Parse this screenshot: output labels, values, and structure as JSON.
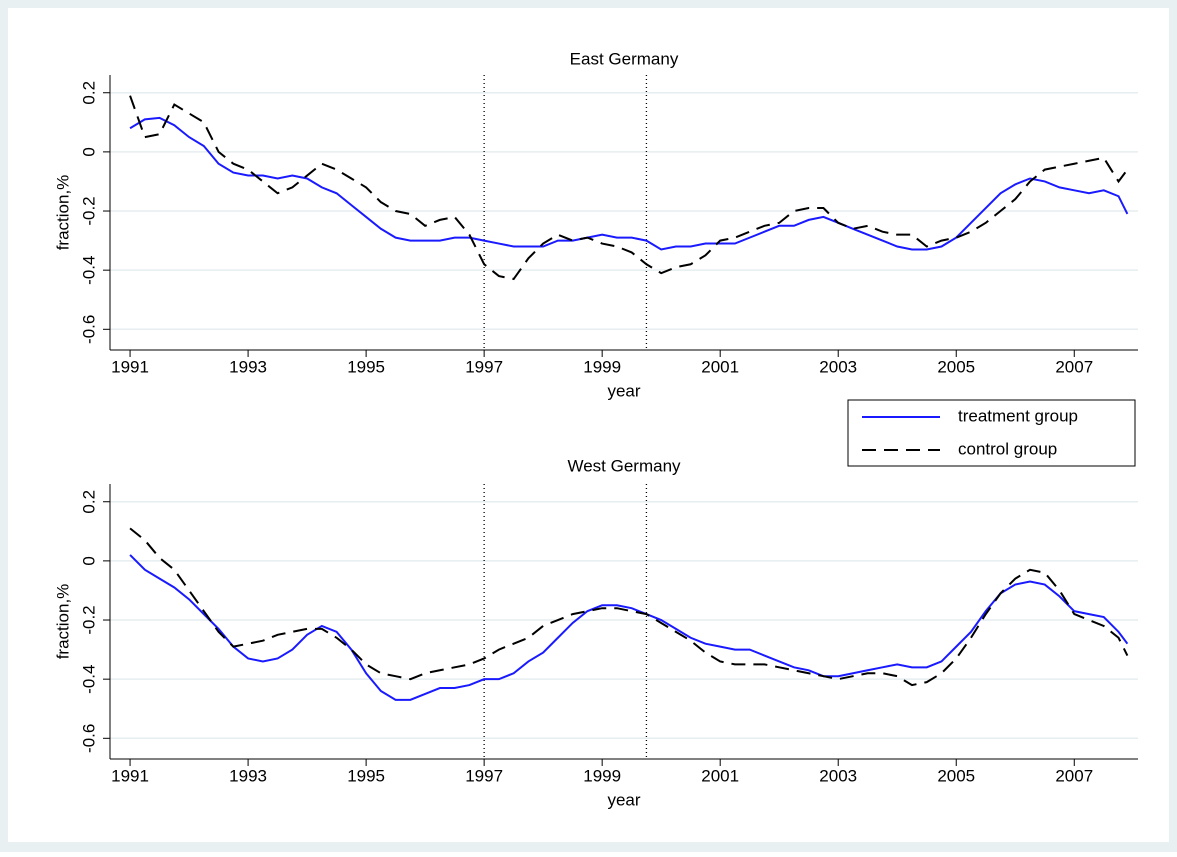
{
  "chart_data": [
    {
      "type": "line",
      "title": "East Germany",
      "x_label": "year",
      "y_label": "fraction,%",
      "xlim": [
        1990.66,
        2008.08
      ],
      "xticks": [
        1991,
        1993,
        1995,
        1997,
        1999,
        2001,
        2003,
        2005,
        2007
      ],
      "ylim": [
        -0.67,
        0.26
      ],
      "yticks": [
        0.2,
        0,
        -0.2,
        -0.4,
        -0.6
      ],
      "grid": true,
      "xlines": [
        1997,
        1999.75
      ],
      "x": [
        1991,
        1991.25,
        1991.5,
        1991.75,
        1992,
        1992.25,
        1992.5,
        1992.75,
        1993,
        1993.25,
        1993.5,
        1993.75,
        1994,
        1994.25,
        1994.5,
        1994.75,
        1995,
        1995.25,
        1995.5,
        1995.75,
        1996,
        1996.25,
        1996.5,
        1996.75,
        1997,
        1997.25,
        1997.5,
        1997.75,
        1998,
        1998.25,
        1998.5,
        1998.75,
        1999,
        1999.25,
        1999.5,
        1999.75,
        2000,
        2000.25,
        2000.5,
        2000.75,
        2001,
        2001.25,
        2001.5,
        2001.75,
        2002,
        2002.25,
        2002.5,
        2002.75,
        2003,
        2003.25,
        2003.5,
        2003.75,
        2004,
        2004.25,
        2004.5,
        2004.75,
        2005,
        2005.25,
        2005.5,
        2005.75,
        2006,
        2006.25,
        2006.5,
        2006.75,
        2007,
        2007.25,
        2007.5,
        2007.75,
        2007.9
      ],
      "series": [
        {
          "name": "treatment group",
          "color": "#1a1aff",
          "dash": "none",
          "values": [
            0.08,
            0.11,
            0.115,
            0.09,
            0.05,
            0.02,
            -0.04,
            -0.07,
            -0.08,
            -0.08,
            -0.09,
            -0.08,
            -0.09,
            -0.12,
            -0.14,
            -0.18,
            -0.22,
            -0.26,
            -0.29,
            -0.3,
            -0.3,
            -0.3,
            -0.29,
            -0.29,
            -0.3,
            -0.31,
            -0.32,
            -0.32,
            -0.32,
            -0.3,
            -0.3,
            -0.29,
            -0.28,
            -0.29,
            -0.29,
            -0.3,
            -0.33,
            -0.32,
            -0.32,
            -0.31,
            -0.31,
            -0.31,
            -0.29,
            -0.27,
            -0.25,
            -0.25,
            -0.23,
            -0.22,
            -0.24,
            -0.26,
            -0.28,
            -0.3,
            -0.32,
            -0.33,
            -0.33,
            -0.32,
            -0.29,
            -0.24,
            -0.19,
            -0.14,
            -0.11,
            -0.09,
            -0.1,
            -0.12,
            -0.13,
            -0.14,
            -0.13,
            -0.15,
            -0.21
          ]
        },
        {
          "name": "control group",
          "color": "#000000",
          "dash": "14 8",
          "values": [
            0.19,
            0.05,
            0.06,
            0.16,
            0.13,
            0.1,
            0.0,
            -0.04,
            -0.06,
            -0.1,
            -0.14,
            -0.12,
            -0.08,
            -0.04,
            -0.06,
            -0.09,
            -0.12,
            -0.17,
            -0.2,
            -0.21,
            -0.25,
            -0.23,
            -0.22,
            -0.28,
            -0.38,
            -0.42,
            -0.43,
            -0.36,
            -0.31,
            -0.28,
            -0.3,
            -0.29,
            -0.31,
            -0.32,
            -0.34,
            -0.38,
            -0.41,
            -0.39,
            -0.38,
            -0.35,
            -0.3,
            -0.29,
            -0.27,
            -0.25,
            -0.24,
            -0.2,
            -0.19,
            -0.19,
            -0.24,
            -0.26,
            -0.25,
            -0.27,
            -0.28,
            -0.28,
            -0.32,
            -0.3,
            -0.29,
            -0.27,
            -0.24,
            -0.2,
            -0.16,
            -0.1,
            -0.06,
            -0.05,
            -0.04,
            -0.03,
            -0.02,
            -0.1,
            -0.06
          ]
        }
      ]
    },
    {
      "type": "line",
      "title": "West Germany",
      "x_label": "year",
      "y_label": "fraction,%",
      "xlim": [
        1990.66,
        2008.08
      ],
      "xticks": [
        1991,
        1993,
        1995,
        1997,
        1999,
        2001,
        2003,
        2005,
        2007
      ],
      "ylim": [
        -0.67,
        0.26
      ],
      "yticks": [
        0.2,
        0,
        -0.2,
        -0.4,
        -0.6
      ],
      "grid": true,
      "xlines": [
        1997,
        1999.75
      ],
      "x": [
        1991,
        1991.25,
        1991.5,
        1991.75,
        1992,
        1992.25,
        1992.5,
        1992.75,
        1993,
        1993.25,
        1993.5,
        1993.75,
        1994,
        1994.25,
        1994.5,
        1994.75,
        1995,
        1995.25,
        1995.5,
        1995.75,
        1996,
        1996.25,
        1996.5,
        1996.75,
        1997,
        1997.25,
        1997.5,
        1997.75,
        1998,
        1998.25,
        1998.5,
        1998.75,
        1999,
        1999.25,
        1999.5,
        1999.75,
        2000,
        2000.25,
        2000.5,
        2000.75,
        2001,
        2001.25,
        2001.5,
        2001.75,
        2002,
        2002.25,
        2002.5,
        2002.75,
        2003,
        2003.25,
        2003.5,
        2003.75,
        2004,
        2004.25,
        2004.5,
        2004.75,
        2005,
        2005.25,
        2005.5,
        2005.75,
        2006,
        2006.25,
        2006.5,
        2006.75,
        2007,
        2007.25,
        2007.5,
        2007.75,
        2007.9
      ],
      "series": [
        {
          "name": "treatment group",
          "color": "#1a1aff",
          "dash": "none",
          "values": [
            0.02,
            -0.03,
            -0.06,
            -0.09,
            -0.13,
            -0.18,
            -0.23,
            -0.29,
            -0.33,
            -0.34,
            -0.33,
            -0.3,
            -0.25,
            -0.22,
            -0.24,
            -0.3,
            -0.38,
            -0.44,
            -0.47,
            -0.47,
            -0.45,
            -0.43,
            -0.43,
            -0.42,
            -0.4,
            -0.4,
            -0.38,
            -0.34,
            -0.31,
            -0.26,
            -0.21,
            -0.17,
            -0.15,
            -0.15,
            -0.16,
            -0.18,
            -0.2,
            -0.23,
            -0.26,
            -0.28,
            -0.29,
            -0.3,
            -0.3,
            -0.32,
            -0.34,
            -0.36,
            -0.37,
            -0.39,
            -0.39,
            -0.38,
            -0.37,
            -0.36,
            -0.35,
            -0.36,
            -0.36,
            -0.34,
            -0.29,
            -0.24,
            -0.17,
            -0.11,
            -0.08,
            -0.07,
            -0.08,
            -0.12,
            -0.17,
            -0.18,
            -0.19,
            -0.24,
            -0.28
          ]
        },
        {
          "name": "control group",
          "color": "#000000",
          "dash": "14 8",
          "values": [
            0.11,
            0.07,
            0.01,
            -0.03,
            -0.1,
            -0.17,
            -0.24,
            -0.29,
            -0.28,
            -0.27,
            -0.25,
            -0.24,
            -0.23,
            -0.23,
            -0.26,
            -0.3,
            -0.35,
            -0.38,
            -0.39,
            -0.4,
            -0.38,
            -0.37,
            -0.36,
            -0.35,
            -0.33,
            -0.3,
            -0.28,
            -0.26,
            -0.22,
            -0.2,
            -0.18,
            -0.17,
            -0.16,
            -0.16,
            -0.17,
            -0.18,
            -0.21,
            -0.24,
            -0.27,
            -0.31,
            -0.34,
            -0.35,
            -0.35,
            -0.35,
            -0.36,
            -0.37,
            -0.38,
            -0.39,
            -0.4,
            -0.39,
            -0.38,
            -0.38,
            -0.39,
            -0.42,
            -0.41,
            -0.38,
            -0.33,
            -0.26,
            -0.18,
            -0.11,
            -0.06,
            -0.03,
            -0.04,
            -0.1,
            -0.18,
            -0.2,
            -0.22,
            -0.26,
            -0.32
          ]
        }
      ]
    }
  ]
}
